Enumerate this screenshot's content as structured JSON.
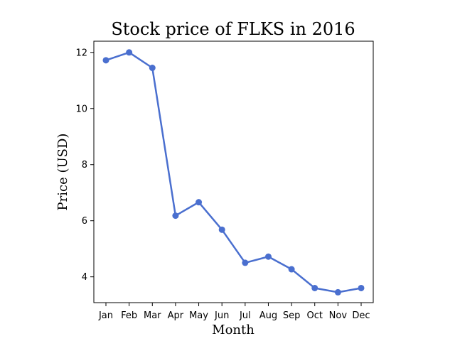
{
  "chart_data": {
    "type": "line",
    "title": "Stock price of FLKS in 2016",
    "xlabel": "Month",
    "ylabel": "Price (USD)",
    "categories": [
      "Jan",
      "Feb",
      "Mar",
      "Apr",
      "May",
      "Jun",
      "Jul",
      "Aug",
      "Sep",
      "Oct",
      "Nov",
      "Dec"
    ],
    "series": [
      {
        "values": [
          11.72,
          12.0,
          11.45,
          6.18,
          6.66,
          5.68,
          4.5,
          4.72,
          4.27,
          3.6,
          3.45,
          3.6
        ]
      }
    ],
    "ylim": [
      3.08,
      12.4
    ],
    "yticks": [
      4,
      6,
      8,
      10,
      12
    ],
    "grid": false,
    "legend": "none",
    "colors": {
      "line": "#4a6fcf",
      "axis": "#000000"
    }
  }
}
